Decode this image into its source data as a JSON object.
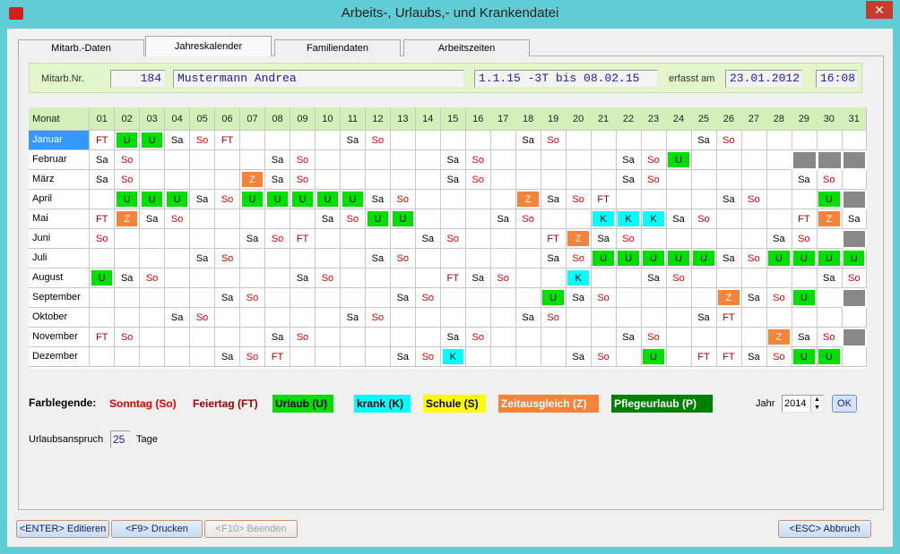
{
  "window": {
    "title": "Arbeits-, Urlaubs,- und Krankendatei"
  },
  "tabs": [
    "Mitarb.-Daten",
    "Jahreskalender",
    "Familiendaten",
    "Arbeitszeiten"
  ],
  "active_tab": 1,
  "employee": {
    "number_label": "Mitarb.Nr.",
    "number": 184,
    "name": "Mustermann Andrea",
    "period": "1.1.15 -3T bis 08.02.15",
    "recorded_label": "erfasst am",
    "recorded_date": "23.01.2012",
    "recorded_time": "16:08"
  },
  "calendar": {
    "month_header": "Monat",
    "days": [
      "01",
      "02",
      "03",
      "04",
      "05",
      "06",
      "07",
      "08",
      "09",
      "10",
      "11",
      "12",
      "13",
      "14",
      "15",
      "16",
      "17",
      "18",
      "19",
      "20",
      "21",
      "22",
      "23",
      "24",
      "25",
      "26",
      "27",
      "28",
      "29",
      "30",
      "31"
    ],
    "months": [
      {
        "name": "Januar",
        "cells": [
          "FT",
          "U",
          "U",
          "Sa",
          "So",
          "FT",
          null,
          null,
          null,
          null,
          "Sa",
          "So",
          null,
          null,
          null,
          null,
          null,
          "Sa",
          "So",
          null,
          null,
          null,
          null,
          null,
          "Sa",
          "So",
          null,
          null,
          null,
          null,
          null
        ]
      },
      {
        "name": "Februar",
        "cells": [
          "Sa",
          "So",
          null,
          null,
          null,
          null,
          null,
          "Sa",
          "So",
          null,
          null,
          null,
          null,
          null,
          "Sa",
          "So",
          null,
          null,
          null,
          null,
          null,
          "Sa",
          "So",
          "U",
          null,
          null,
          null,
          null
        ]
      },
      {
        "name": "März",
        "cells": [
          "Sa",
          "So",
          null,
          null,
          null,
          null,
          "Z",
          "Sa",
          "So",
          null,
          null,
          null,
          null,
          null,
          "Sa",
          "So",
          null,
          null,
          null,
          null,
          null,
          "Sa",
          "So",
          null,
          null,
          null,
          null,
          null,
          "Sa",
          "So",
          null
        ]
      },
      {
        "name": "April",
        "cells": [
          null,
          "U",
          "U",
          "U",
          "Sa",
          "So",
          "U",
          "U",
          "U",
          "U",
          "U",
          "Sa",
          "So",
          null,
          null,
          null,
          null,
          "Z",
          "Sa",
          "So",
          "FT",
          null,
          null,
          null,
          null,
          "Sa",
          "So",
          null,
          null,
          "U"
        ]
      },
      {
        "name": "Mai",
        "cells": [
          "FT",
          "Z",
          "Sa",
          "So",
          null,
          null,
          null,
          null,
          null,
          "Sa",
          "So",
          "U",
          "U",
          null,
          null,
          null,
          "Sa",
          "So",
          null,
          null,
          "K",
          "K",
          "K",
          "Sa",
          "So",
          null,
          null,
          null,
          "FT",
          "Z",
          "Sa"
        ]
      },
      {
        "name": "Juni",
        "cells": [
          "So",
          null,
          null,
          null,
          null,
          null,
          "Sa",
          "So",
          "FT",
          null,
          null,
          null,
          null,
          "Sa",
          "So",
          null,
          null,
          null,
          "FT",
          "Z",
          "Sa",
          "So",
          null,
          null,
          null,
          null,
          null,
          "Sa",
          "So",
          null
        ]
      },
      {
        "name": "Juli",
        "cells": [
          null,
          null,
          null,
          null,
          "Sa",
          "So",
          null,
          null,
          null,
          null,
          null,
          "Sa",
          "So",
          null,
          null,
          null,
          null,
          null,
          "Sa",
          "So",
          "U",
          "U",
          "U",
          "U",
          "U",
          "Sa",
          "So",
          "U",
          "U",
          "U",
          "U"
        ]
      },
      {
        "name": "August",
        "cells": [
          "U",
          "Sa",
          "So",
          null,
          null,
          null,
          null,
          null,
          "Sa",
          "So",
          null,
          null,
          null,
          null,
          "FT",
          "Sa",
          "So",
          null,
          null,
          "K",
          null,
          null,
          "Sa",
          "So",
          null,
          null,
          null,
          null,
          null,
          "Sa",
          "So"
        ]
      },
      {
        "name": "September",
        "cells": [
          null,
          null,
          null,
          null,
          null,
          "Sa",
          "So",
          null,
          null,
          null,
          null,
          null,
          "Sa",
          "So",
          null,
          null,
          null,
          null,
          "U",
          "Sa",
          "So",
          null,
          null,
          null,
          null,
          "Z",
          "Sa",
          "So",
          "U",
          null
        ]
      },
      {
        "name": "Oktober",
        "cells": [
          null,
          null,
          null,
          "Sa",
          "So",
          null,
          null,
          null,
          null,
          null,
          "Sa",
          "So",
          null,
          null,
          null,
          null,
          null,
          "Sa",
          "So",
          null,
          null,
          null,
          null,
          null,
          "Sa",
          "FT",
          null,
          null,
          null,
          null,
          null
        ]
      },
      {
        "name": "November",
        "cells": [
          "FT",
          "So",
          null,
          null,
          null,
          null,
          null,
          "Sa",
          "So",
          null,
          null,
          null,
          null,
          null,
          "Sa",
          "So",
          null,
          null,
          null,
          null,
          null,
          "Sa",
          "So",
          null,
          null,
          null,
          null,
          "Z",
          "Sa",
          "So"
        ]
      },
      {
        "name": "Dezember",
        "cells": [
          null,
          null,
          null,
          null,
          null,
          "Sa",
          "So",
          "FT",
          null,
          null,
          null,
          null,
          "Sa",
          "So",
          "K",
          null,
          null,
          null,
          null,
          "Sa",
          "So",
          null,
          "U",
          null,
          "FT",
          "FT",
          "Sa",
          "So",
          "U",
          "U",
          null
        ]
      }
    ]
  },
  "legend": {
    "title": "Farblegende:",
    "items": [
      {
        "label": "Sonntag (So)",
        "color": "#e00000"
      },
      {
        "label": "Feiertag (FT)",
        "color": "#a00000"
      },
      {
        "label": "Urlaub (U)",
        "color": "#000000",
        "background": "#00e000"
      },
      {
        "label": "krank (K)",
        "color": "#000000",
        "background": "#00ffff"
      },
      {
        "label": "Schule (S)",
        "color": "#000000",
        "background": "#ffff00"
      },
      {
        "label": "Zeitausgleich (Z)",
        "color": "#ffffff",
        "background": "#f5843a"
      },
      {
        "label": "Pflegeurlaub (P)",
        "color": "#ffffff",
        "background": "#008000"
      }
    ]
  },
  "year": {
    "label": "Jahr",
    "value": 2014,
    "button": "OK"
  },
  "vacation": {
    "label": "Urlaubsanspruch",
    "value": 25,
    "unit": "Tage"
  },
  "buttons": [
    "<ENTER> Editieren",
    "<F9> Drucken",
    "<F10> Beenden",
    "<ESC> Abbruch"
  ]
}
